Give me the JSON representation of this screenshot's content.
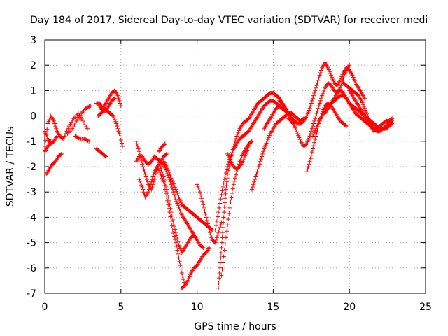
{
  "chart_data": {
    "type": "scatter",
    "title": "Day 184 of 2017, Sidereal Day-to-day VTEC variation (SDTVAR) for receiver medi",
    "xlabel": "GPS time / hours",
    "ylabel": "SDTVAR / TECUs",
    "xlim": [
      0,
      25
    ],
    "ylim": [
      -7,
      3
    ],
    "xticks": [
      0,
      5,
      10,
      15,
      20,
      25
    ],
    "yticks": [
      -7,
      -6,
      -5,
      -4,
      -3,
      -2,
      -1,
      0,
      1,
      2,
      3
    ],
    "grid": true,
    "marker": "+",
    "marker_color": "#ff0000",
    "series": [
      {
        "x": [
          0.0,
          0.2,
          0.4,
          0.6,
          0.8,
          1.0,
          1.2
        ],
        "y": [
          -1.2,
          -0.3,
          0.0,
          -0.2,
          -0.6,
          -0.8,
          -0.9
        ]
      },
      {
        "x": [
          0.0,
          0.2,
          0.4,
          0.6,
          0.8
        ],
        "y": [
          -0.6,
          -0.9,
          -1.1,
          -1.0,
          -0.8
        ]
      },
      {
        "x": [
          0.1,
          0.3,
          0.5,
          0.7,
          0.9,
          1.1
        ],
        "y": [
          -2.3,
          -2.1,
          -1.9,
          -1.8,
          -1.6,
          -1.5
        ]
      },
      {
        "x": [
          0.0,
          0.2,
          0.4
        ],
        "y": [
          -1.4,
          -1.2,
          -1.0
        ]
      },
      {
        "x": [
          1.5,
          1.8,
          2.1,
          2.4,
          2.7,
          3.0
        ],
        "y": [
          -0.7,
          -0.5,
          -0.2,
          0.1,
          0.3,
          0.4
        ]
      },
      {
        "x": [
          1.3,
          1.6,
          1.9,
          2.2,
          2.5,
          2.8
        ],
        "y": [
          -0.8,
          -0.4,
          -0.1,
          0.1,
          -0.2,
          -0.5
        ]
      },
      {
        "x": [
          2.0,
          2.3,
          2.6,
          2.9
        ],
        "y": [
          -0.8,
          -0.9,
          -0.9,
          -1.0
        ]
      },
      {
        "x": [
          3.4,
          3.6,
          3.8,
          4.0,
          4.2,
          4.4,
          4.6,
          4.8,
          5.0
        ],
        "y": [
          0.5,
          0.5,
          0.3,
          0.5,
          0.7,
          0.9,
          1.0,
          0.8,
          0.4
        ]
      },
      {
        "x": [
          3.5,
          3.7,
          3.9,
          4.1,
          4.3,
          4.5,
          4.7,
          4.9,
          5.1
        ],
        "y": [
          0.0,
          0.1,
          0.3,
          0.2,
          0.1,
          0.0,
          -0.3,
          -0.7,
          -1.2
        ]
      },
      {
        "x": [
          3.6,
          3.8,
          4.0,
          4.2,
          4.4,
          4.6
        ],
        "y": [
          0.4,
          0.2,
          0.2,
          0.4,
          0.6,
          0.7
        ]
      },
      {
        "x": [
          3.4,
          3.6,
          3.8,
          4.0
        ],
        "y": [
          -1.3,
          -1.4,
          -1.5,
          -1.6
        ]
      },
      {
        "x": [
          6.0,
          6.2,
          6.4,
          6.6,
          6.8,
          7.0,
          7.2,
          7.4,
          7.6,
          7.8,
          8.0,
          8.2,
          8.4,
          8.6,
          8.8,
          9.0,
          9.2,
          9.4,
          9.6,
          9.8,
          10.0
        ],
        "y": [
          -1.8,
          -1.6,
          -1.6,
          -1.8,
          -1.9,
          -1.8,
          -1.6,
          -1.7,
          -1.8,
          -1.9,
          -2.2,
          -2.5,
          -2.9,
          -3.3,
          -3.6,
          -3.9,
          -4.1,
          -4.3,
          -4.5,
          -4.7,
          -4.9
        ]
      },
      {
        "x": [
          6.2,
          6.4,
          6.6,
          6.8,
          7.0,
          7.2,
          7.4,
          7.6,
          7.8,
          8.0,
          8.2,
          8.4,
          8.6,
          8.8,
          9.0,
          9.2
        ],
        "y": [
          -2.5,
          -2.8,
          -3.2,
          -3.0,
          -2.6,
          -2.2,
          -2.0,
          -2.3,
          -2.6,
          -3.2,
          -3.8,
          -4.5,
          -5.0,
          -5.6,
          -6.2,
          -6.7
        ]
      },
      {
        "x": [
          6.0,
          6.2,
          6.4,
          6.6,
          6.8,
          7.0,
          7.2,
          7.4,
          7.6,
          7.8,
          8.0
        ],
        "y": [
          -1.0,
          -1.4,
          -1.9,
          -2.3,
          -2.7,
          -2.9,
          -2.5,
          -2.0,
          -1.8,
          -1.6,
          -1.5
        ]
      },
      {
        "x": [
          7.6,
          7.8,
          8.0,
          8.2,
          8.4,
          8.6,
          8.8,
          9.0,
          9.2,
          9.4,
          9.6,
          9.8,
          10.0,
          10.2,
          10.4
        ],
        "y": [
          -2.0,
          -2.4,
          -2.9,
          -3.5,
          -4.1,
          -4.6,
          -5.1,
          -5.4,
          -5.2,
          -5.0,
          -4.8,
          -4.7,
          -4.9,
          -5.1,
          -5.2
        ]
      },
      {
        "x": [
          7.8,
          8.0,
          8.2,
          8.4,
          8.6,
          8.8,
          9.0,
          9.2,
          9.4,
          9.6,
          9.8,
          10.0,
          10.2,
          10.4,
          10.6,
          10.8,
          11.0
        ],
        "y": [
          -1.8,
          -2.0,
          -2.3,
          -2.6,
          -2.9,
          -3.2,
          -3.5,
          -3.6,
          -3.7,
          -3.8,
          -3.9,
          -4.0,
          -4.1,
          -4.2,
          -4.3,
          -4.4,
          -4.5
        ]
      },
      {
        "x": [
          9.0,
          9.2,
          9.4,
          9.6,
          9.8,
          10.0,
          10.2,
          10.4,
          10.6,
          10.8
        ],
        "y": [
          -6.8,
          -6.7,
          -6.5,
          -6.2,
          -6.0,
          -5.9,
          -5.7,
          -5.5,
          -5.4,
          -5.2
        ]
      },
      {
        "x": [
          7.5,
          7.7,
          7.9
        ],
        "y": [
          -1.4,
          -1.2,
          -1.1
        ]
      },
      {
        "x": [
          10.0,
          10.2,
          10.4,
          10.6,
          10.8,
          11.0,
          11.2,
          11.4,
          11.6
        ],
        "y": [
          -2.7,
          -3.0,
          -3.5,
          -4.0,
          -4.5,
          -4.9,
          -5.0,
          -4.6,
          -4.2
        ]
      },
      {
        "x": [
          11.4,
          11.5,
          11.6,
          11.7,
          11.8,
          11.9,
          12.0,
          12.2,
          12.4,
          12.6,
          12.8,
          13.0,
          13.2,
          13.4,
          13.6,
          13.8,
          14.0,
          14.2,
          14.4,
          14.6,
          14.8,
          15.0,
          15.2,
          15.4,
          15.6,
          15.8,
          16.0,
          16.2
        ],
        "y": [
          -6.8,
          -6.0,
          -5.2,
          -4.4,
          -3.6,
          -2.9,
          -2.3,
          -1.7,
          -1.2,
          -0.8,
          -0.5,
          -0.3,
          -0.2,
          -0.1,
          0.1,
          0.3,
          0.5,
          0.6,
          0.7,
          0.8,
          0.9,
          0.9,
          0.8,
          0.7,
          0.5,
          0.3,
          0.1,
          0.0
        ]
      },
      {
        "x": [
          11.2,
          11.4,
          11.6,
          11.8,
          12.0,
          12.2,
          12.4,
          12.6,
          12.8,
          13.0,
          13.2,
          13.4,
          13.6,
          13.8,
          14.0,
          14.2,
          14.4,
          14.6,
          14.8,
          15.0,
          15.2,
          15.4,
          15.6,
          15.8,
          16.0
        ],
        "y": [
          -4.5,
          -3.8,
          -3.1,
          -2.5,
          -2.0,
          -1.6,
          -1.3,
          -1.1,
          -0.9,
          -0.8,
          -0.7,
          -0.6,
          -0.4,
          -0.2,
          0.0,
          0.2,
          0.4,
          0.5,
          0.6,
          0.6,
          0.5,
          0.4,
          0.3,
          0.2,
          0.1
        ]
      },
      {
        "x": [
          11.6,
          11.8,
          12.0,
          12.2,
          12.4,
          12.6,
          12.8,
          13.0,
          13.2,
          13.4,
          13.6
        ],
        "y": [
          -6.3,
          -5.3,
          -4.3,
          -3.4,
          -2.7,
          -2.2,
          -1.8,
          -1.5,
          -1.3,
          -1.1,
          -1.0
        ]
      },
      {
        "x": [
          12.0,
          12.2,
          12.4,
          12.6,
          12.8,
          13.0,
          13.2,
          13.4
        ],
        "y": [
          -1.5,
          -1.8,
          -2.0,
          -2.1,
          -2.0,
          -1.8,
          -1.5,
          -1.2
        ]
      },
      {
        "x": [
          13.6,
          13.8,
          14.0,
          14.2,
          14.4,
          14.6,
          14.8,
          15.0,
          15.2,
          15.4,
          15.6,
          15.8,
          16.0,
          16.2,
          16.4,
          16.6,
          16.8,
          17.0
        ],
        "y": [
          -2.9,
          -2.5,
          -2.1,
          -1.7,
          -1.3,
          -1.0,
          -0.7,
          -0.5,
          -0.3,
          -0.2,
          -0.1,
          0.0,
          0.1,
          0.1,
          0.0,
          -0.1,
          -0.2,
          -0.1
        ]
      },
      {
        "x": [
          14.4,
          14.6,
          14.8,
          15.0,
          15.2,
          15.4,
          15.6,
          15.8,
          16.0,
          16.2
        ],
        "y": [
          -0.5,
          -0.3,
          -0.1,
          0.1,
          0.3,
          0.4,
          0.3,
          0.2,
          0.1,
          0.0
        ]
      },
      {
        "x": [
          15.4,
          15.6,
          15.8,
          16.0,
          16.2,
          16.4,
          16.6,
          16.8,
          17.0,
          17.2,
          17.4,
          17.6,
          17.8,
          18.0,
          18.2,
          18.4,
          18.6,
          18.8,
          19.0,
          19.2,
          19.4,
          19.6,
          19.8,
          20.0,
          20.2,
          20.4,
          20.6,
          20.8,
          21.0
        ],
        "y": [
          0.6,
          0.5,
          0.3,
          0.1,
          -0.1,
          -0.2,
          -0.3,
          -0.3,
          -0.2,
          0.0,
          0.3,
          0.7,
          1.1,
          1.5,
          1.9,
          2.1,
          1.9,
          1.6,
          1.3,
          1.2,
          1.4,
          1.7,
          1.9,
          1.8,
          1.6,
          1.3,
          1.1,
          0.9,
          0.7
        ]
      },
      {
        "x": [
          16.0,
          16.2,
          16.4,
          16.6,
          16.8,
          17.0,
          17.2,
          17.4,
          17.6,
          17.8,
          18.0,
          18.2,
          18.4,
          18.6,
          18.8,
          19.0,
          19.2,
          19.4,
          19.6,
          19.8,
          20.0
        ],
        "y": [
          -0.1,
          -0.2,
          -0.4,
          -0.7,
          -1.0,
          -1.2,
          -1.1,
          -0.8,
          -0.4,
          0.0,
          0.4,
          0.8,
          1.1,
          1.3,
          1.2,
          1.0,
          0.9,
          1.1,
          1.5,
          1.8,
          2.0
        ]
      },
      {
        "x": [
          17.2,
          17.4,
          17.6,
          17.8,
          18.0,
          18.2,
          18.4,
          18.6,
          18.8,
          19.0,
          19.2,
          19.4,
          19.6,
          19.8
        ],
        "y": [
          -2.2,
          -1.8,
          -1.3,
          -0.8,
          -0.3,
          0.1,
          0.4,
          0.5,
          0.4,
          0.2,
          0.0,
          -0.2,
          -0.3,
          -0.4
        ]
      },
      {
        "x": [
          17.6,
          17.8,
          18.0,
          18.2,
          18.4,
          18.6,
          18.8,
          19.0,
          19.2,
          19.4,
          19.6,
          19.8,
          20.0,
          20.2,
          20.4,
          20.6,
          20.8,
          21.0,
          21.2,
          21.4,
          21.6,
          21.8,
          22.0,
          22.2,
          22.4,
          22.6,
          22.8
        ],
        "y": [
          -0.8,
          -0.5,
          -0.2,
          0.0,
          0.2,
          0.4,
          0.5,
          0.6,
          0.7,
          0.8,
          0.8,
          0.7,
          0.5,
          0.3,
          0.1,
          0.0,
          -0.1,
          -0.2,
          -0.3,
          -0.4,
          -0.5,
          -0.5,
          -0.4,
          -0.3,
          -0.2,
          -0.2,
          -0.1
        ]
      },
      {
        "x": [
          18.4,
          18.6,
          18.8,
          19.0,
          19.2,
          19.4,
          19.6,
          19.8,
          20.0,
          20.2,
          20.4,
          20.6,
          20.8,
          21.0,
          21.2,
          21.4,
          21.6,
          21.8,
          22.0,
          22.2,
          22.4,
          22.6,
          22.8
        ],
        "y": [
          0.1,
          0.3,
          0.5,
          0.7,
          0.9,
          1.0,
          0.9,
          0.7,
          0.5,
          0.4,
          0.3,
          0.2,
          0.1,
          0.0,
          -0.1,
          -0.2,
          -0.3,
          -0.4,
          -0.5,
          -0.5,
          -0.5,
          -0.4,
          -0.3
        ]
      },
      {
        "x": [
          19.6,
          19.8,
          20.0,
          20.2,
          20.4,
          20.6,
          20.8,
          21.0,
          21.2,
          21.4,
          21.6,
          21.8,
          22.0,
          22.2,
          22.4,
          22.6,
          22.8
        ],
        "y": [
          1.3,
          1.2,
          1.1,
          1.0,
          0.9,
          0.8,
          0.6,
          0.3,
          0.0,
          -0.3,
          -0.5,
          -0.6,
          -0.6,
          -0.5,
          -0.4,
          -0.3,
          -0.2
        ]
      },
      {
        "x": [
          20.0,
          20.2,
          20.4,
          20.6,
          20.8,
          21.0,
          21.2,
          21.4,
          21.6
        ],
        "y": [
          1.0,
          0.8,
          0.6,
          0.4,
          0.2,
          0.0,
          -0.2,
          -0.4,
          -0.6
        ]
      }
    ]
  }
}
